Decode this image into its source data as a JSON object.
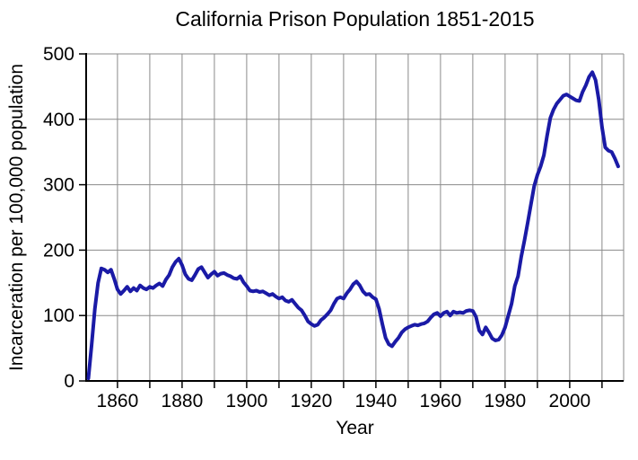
{
  "chart_data": {
    "type": "line",
    "title": "California Prison Population 1851-2015",
    "xlabel": "Year",
    "ylabel": "Incarceration per 100,000 population",
    "xlim": [
      1850.3,
      2016.7
    ],
    "ylim": [
      0,
      500
    ],
    "grid": true,
    "legend": "none",
    "x_gridline_years": [
      1860,
      1870,
      1880,
      1890,
      1900,
      1910,
      1920,
      1930,
      1940,
      1950,
      1960,
      1970,
      1980,
      1990,
      2000,
      2010
    ],
    "x_tick_years": [
      1860,
      1870,
      1880,
      1890,
      1900,
      1910,
      1920,
      1930,
      1940,
      1950,
      1960,
      1970,
      1980,
      1990,
      2000,
      2010
    ],
    "x_tick_label_years": [
      1860,
      1880,
      1900,
      1920,
      1940,
      1960,
      1980,
      2000
    ],
    "y_gridline_values": [
      100,
      200,
      300,
      400,
      500
    ],
    "y_tick_values": [
      0,
      100,
      200,
      300,
      400,
      500
    ],
    "colors": {
      "line": "#1a1aa6",
      "grid": "#8a8a8a",
      "axis": "#000000",
      "text": "#000000",
      "background": "#ffffff"
    },
    "series": [
      {
        "name": "Incarceration rate per 100,000 population",
        "color": "#1a1aa6",
        "years": [
          1851,
          1852,
          1853,
          1854,
          1855,
          1856,
          1857,
          1858,
          1859,
          1860,
          1861,
          1862,
          1863,
          1864,
          1865,
          1866,
          1867,
          1868,
          1869,
          1870,
          1871,
          1872,
          1873,
          1874,
          1875,
          1876,
          1877,
          1878,
          1879,
          1880,
          1881,
          1882,
          1883,
          1884,
          1885,
          1886,
          1887,
          1888,
          1889,
          1890,
          1891,
          1892,
          1893,
          1894,
          1895,
          1896,
          1897,
          1898,
          1899,
          1900,
          1901,
          1902,
          1903,
          1904,
          1905,
          1906,
          1907,
          1908,
          1909,
          1910,
          1911,
          1912,
          1913,
          1914,
          1915,
          1916,
          1917,
          1918,
          1919,
          1920,
          1921,
          1922,
          1923,
          1924,
          1925,
          1926,
          1927,
          1928,
          1929,
          1930,
          1931,
          1932,
          1933,
          1934,
          1935,
          1936,
          1937,
          1938,
          1939,
          1940,
          1941,
          1942,
          1943,
          1944,
          1945,
          1946,
          1947,
          1948,
          1949,
          1950,
          1951,
          1952,
          1953,
          1954,
          1955,
          1956,
          1957,
          1958,
          1959,
          1960,
          1961,
          1962,
          1963,
          1964,
          1965,
          1966,
          1967,
          1968,
          1969,
          1970,
          1971,
          1972,
          1973,
          1974,
          1975,
          1976,
          1977,
          1978,
          1979,
          1980,
          1981,
          1982,
          1983,
          1984,
          1985,
          1986,
          1987,
          1988,
          1989,
          1990,
          1991,
          1992,
          1993,
          1994,
          1995,
          1996,
          1997,
          1998,
          1999,
          2000,
          2001,
          2002,
          2003,
          2004,
          2005,
          2006,
          2007,
          2008,
          2009,
          2010,
          2011,
          2012,
          2013,
          2014,
          2015
        ],
        "values": [
          4,
          55,
          110,
          150,
          172,
          170,
          166,
          170,
          156,
          140,
          133,
          138,
          144,
          137,
          142,
          138,
          146,
          142,
          140,
          144,
          142,
          146,
          149,
          145,
          155,
          162,
          174,
          182,
          187,
          177,
          163,
          156,
          154,
          162,
          171,
          174,
          166,
          158,
          163,
          167,
          161,
          164,
          165,
          162,
          160,
          157,
          156,
          160,
          151,
          145,
          138,
          137,
          138,
          136,
          137,
          134,
          131,
          133,
          129,
          126,
          128,
          123,
          121,
          124,
          118,
          112,
          108,
          100,
          91,
          87,
          84,
          86,
          93,
          97,
          102,
          108,
          118,
          126,
          128,
          126,
          134,
          140,
          148,
          152,
          146,
          137,
          132,
          133,
          128,
          125,
          110,
          87,
          66,
          56,
          53,
          60,
          66,
          74,
          79,
          82,
          84,
          86,
          85,
          87,
          88,
          91,
          97,
          102,
          104,
          99,
          104,
          106,
          100,
          106,
          104,
          105,
          104,
          107,
          108,
          107,
          98,
          77,
          71,
          82,
          74,
          65,
          62,
          63,
          70,
          82,
          100,
          118,
          145,
          160,
          190,
          215,
          242,
          270,
          298,
          315,
          328,
          345,
          375,
          402,
          415,
          424,
          430,
          436,
          438,
          435,
          432,
          429,
          428,
          442,
          452,
          465,
          472,
          460,
          430,
          388,
          357,
          352,
          350,
          340,
          328
        ]
      }
    ]
  }
}
